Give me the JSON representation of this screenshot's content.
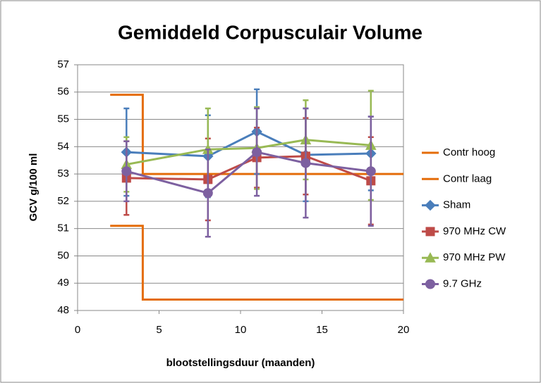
{
  "chart_data": {
    "type": "line",
    "title": "Gemiddeld Corpusculair Volume",
    "x_label": "blootstellingsduur (maanden)",
    "y_label": "GCV g/100 ml",
    "xlim": [
      0,
      20
    ],
    "xticks": [
      0,
      5,
      10,
      15,
      20
    ],
    "ylim": [
      48,
      57
    ],
    "yticks": [
      48,
      49,
      50,
      51,
      52,
      53,
      54,
      55,
      56,
      57
    ],
    "grid": true,
    "legend": "right",
    "series": [
      {
        "name": "Contr hoog",
        "color": "#e46c0a",
        "marker": "none",
        "x": [
          2,
          4,
          4,
          20
        ],
        "values": [
          55.9,
          55.9,
          53,
          53
        ]
      },
      {
        "name": "Contr laag",
        "color": "#e46c0a",
        "marker": "none",
        "x": [
          2,
          4,
          4,
          20
        ],
        "values": [
          51.1,
          51.1,
          48.4,
          48.4
        ]
      },
      {
        "name": "Sham",
        "color": "#4a7ebb",
        "marker": "diamond",
        "x": [
          3,
          8,
          11,
          14,
          18
        ],
        "values": [
          53.8,
          53.65,
          54.55,
          53.7,
          53.75
        ],
        "errors": [
          1.6,
          1.5,
          1.55,
          1.7,
          1.35
        ]
      },
      {
        "name": "970 MHz CW",
        "color": "#be4b48",
        "marker": "square",
        "x": [
          3,
          8,
          11,
          14,
          18
        ],
        "values": [
          52.85,
          52.8,
          53.6,
          53.65,
          52.75
        ],
        "errors": [
          1.35,
          1.5,
          1.1,
          1.4,
          1.6
        ]
      },
      {
        "name": "970 MHz PW",
        "color": "#98b954",
        "marker": "triangle",
        "x": [
          3,
          8,
          11,
          14,
          18
        ],
        "values": [
          53.35,
          53.9,
          53.95,
          54.25,
          54.05
        ],
        "errors": [
          1.0,
          1.5,
          1.5,
          1.45,
          2.0
        ]
      },
      {
        "name": "9.7 GHz",
        "color": "#7d60a0",
        "marker": "circle",
        "x": [
          3,
          8,
          11,
          14,
          18
        ],
        "values": [
          53.1,
          52.3,
          53.8,
          53.4,
          53.1
        ],
        "errors": [
          1.1,
          1.6,
          1.6,
          2.0,
          2.0
        ]
      }
    ]
  }
}
